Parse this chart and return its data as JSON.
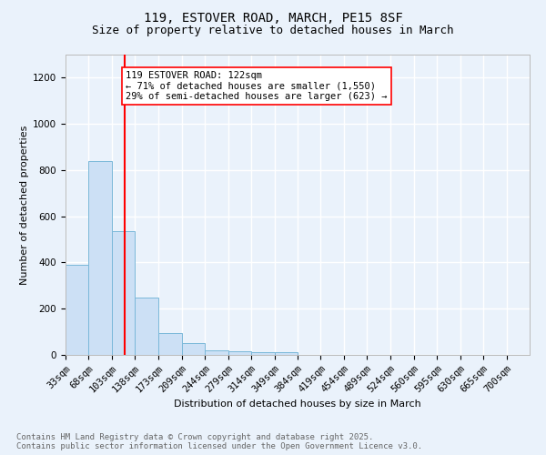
{
  "title_line1": "119, ESTOVER ROAD, MARCH, PE15 8SF",
  "title_line2": "Size of property relative to detached houses in March",
  "xlabel": "Distribution of detached houses by size in March",
  "ylabel": "Number of detached properties",
  "bar_edges": [
    33,
    68,
    103,
    138,
    173,
    209,
    244,
    279,
    314,
    349,
    384,
    419,
    454,
    489,
    524,
    560,
    595,
    630,
    665,
    700,
    735
  ],
  "bar_heights": [
    390,
    840,
    535,
    250,
    93,
    50,
    20,
    15,
    12,
    10,
    0,
    0,
    0,
    0,
    0,
    0,
    0,
    0,
    0,
    0
  ],
  "bar_color": "#cce0f5",
  "bar_edge_color": "#7ab8d9",
  "vline_x": 122,
  "vline_color": "red",
  "annotation_text": "119 ESTOVER ROAD: 122sqm\n← 71% of detached houses are smaller (1,550)\n29% of semi-detached houses are larger (623) →",
  "annotation_box_color": "white",
  "annotation_box_edge_color": "red",
  "ylim": [
    0,
    1300
  ],
  "yticks": [
    0,
    200,
    400,
    600,
    800,
    1000,
    1200
  ],
  "background_color": "#eaf2fb",
  "grid_color": "white",
  "footer_line1": "Contains HM Land Registry data © Crown copyright and database right 2025.",
  "footer_line2": "Contains public sector information licensed under the Open Government Licence v3.0.",
  "title_fontsize": 10,
  "subtitle_fontsize": 9,
  "axis_label_fontsize": 8,
  "tick_fontsize": 7.5,
  "annotation_fontsize": 7.5,
  "footer_fontsize": 6.5,
  "ylabel_fontsize": 8
}
